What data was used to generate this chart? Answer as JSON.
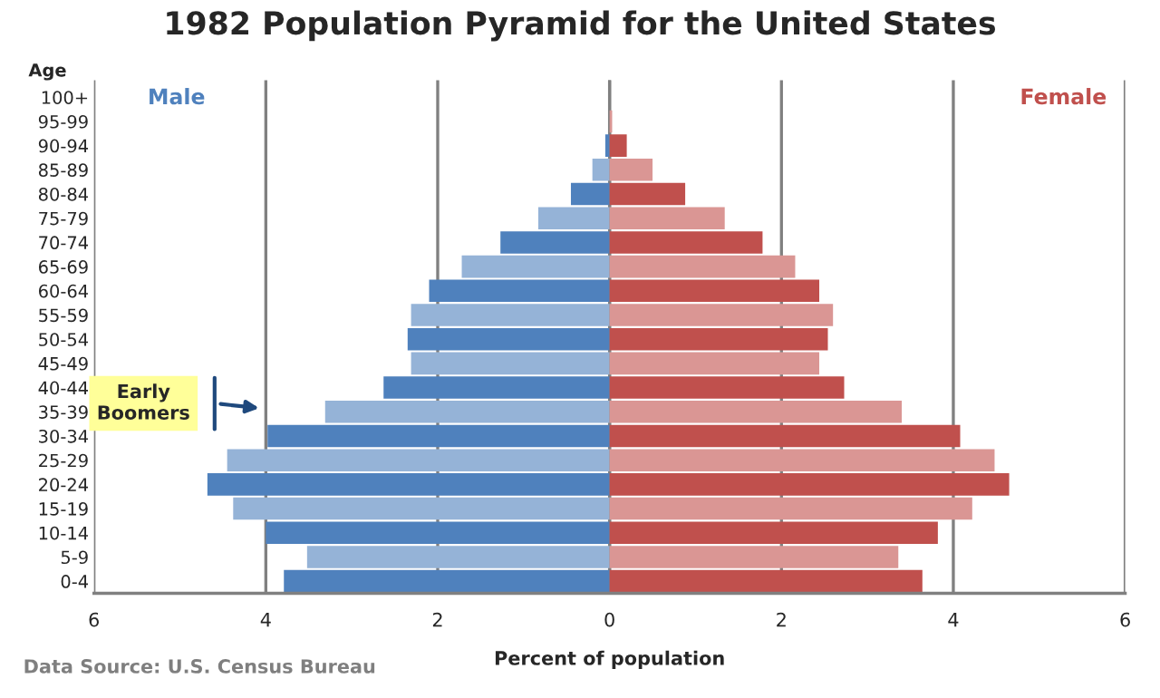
{
  "chart_data": {
    "type": "bar",
    "orientation": "horizontal",
    "stacked": true,
    "title": "1982 Population Pyramid for the United States",
    "xlabel": "Percent of population",
    "ylabel": "Age",
    "categories": [
      "100+",
      "95-99",
      "90-94",
      "85-89",
      "80-84",
      "75-79",
      "70-74",
      "65-69",
      "60-64",
      "55-59",
      "50-54",
      "45-49",
      "40-44",
      "35-39",
      "30-34",
      "25-29",
      "20-24",
      "15-19",
      "10-14",
      "5-9",
      "0-4"
    ],
    "series": [
      {
        "name": "Male",
        "color": "#4f81bd",
        "colors": [
          "#4f81bd",
          "#95b3d7",
          "#4f81bd",
          "#95b3d7",
          "#4f81bd",
          "#95b3d7",
          "#4f81bd",
          "#95b3d7",
          "#4f81bd",
          "#95b3d7",
          "#4f81bd",
          "#95b3d7",
          "#4f81bd",
          "#95b3d7",
          "#4f81bd",
          "#95b3d7",
          "#4f81bd",
          "#95b3d7",
          "#4f81bd",
          "#95b3d7",
          "#4f81bd"
        ],
        "values": [
          0,
          0,
          -0.05,
          -0.2,
          -0.45,
          -0.83,
          -1.27,
          -1.72,
          -2.1,
          -2.31,
          -2.35,
          -2.31,
          -2.63,
          -3.31,
          -3.98,
          -4.45,
          -4.68,
          -4.38,
          -4.0,
          -3.52,
          -3.79
        ]
      },
      {
        "name": "Female",
        "color": "#c0504d",
        "colors": [
          "#c0504d",
          "#da9694",
          "#c0504d",
          "#da9694",
          "#c0504d",
          "#da9694",
          "#c0504d",
          "#da9694",
          "#c0504d",
          "#da9694",
          "#c0504d",
          "#da9694",
          "#c0504d",
          "#da9694",
          "#c0504d",
          "#da9694",
          "#c0504d",
          "#da9694",
          "#c0504d",
          "#da9694",
          "#c0504d"
        ],
        "values": [
          0,
          0.03,
          0.2,
          0.5,
          0.88,
          1.34,
          1.78,
          2.16,
          2.44,
          2.6,
          2.54,
          2.44,
          2.73,
          3.4,
          4.08,
          4.48,
          4.65,
          4.22,
          3.82,
          3.36,
          3.64
        ]
      }
    ],
    "xlim": [
      -6,
      6
    ],
    "xticks": [
      {
        "value": -6,
        "label": "6"
      },
      {
        "value": -4,
        "label": "4"
      },
      {
        "value": -2,
        "label": "2"
      },
      0,
      2,
      4,
      6
    ],
    "grid": "x",
    "legend": false,
    "annotations": [
      "Early\nBoomers",
      "Data Source: U.S. Census Bureau"
    ]
  }
}
